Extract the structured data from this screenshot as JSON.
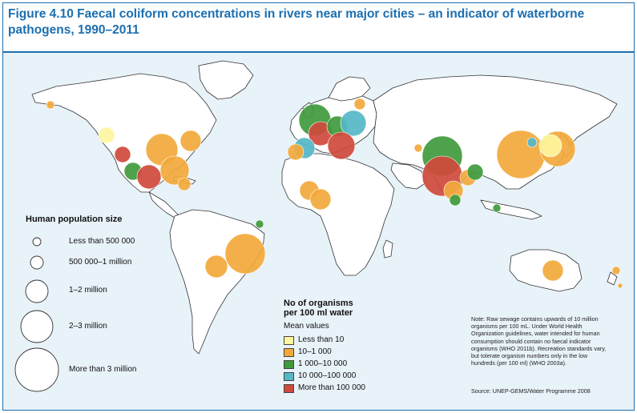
{
  "title": "Figure 4.10 Faecal coliform concentrations in rivers near major cities – an indicator of waterborne pathogens, 1990–2011",
  "population_legend": {
    "title": "Human population size",
    "items": [
      {
        "label": "Less than 500 000"
      },
      {
        "label": "500 000–1 million"
      },
      {
        "label": "1–2 million"
      },
      {
        "label": "2–3 million"
      },
      {
        "label": "More than 3 million"
      }
    ]
  },
  "concentration_legend": {
    "title_line1": "No of organisms",
    "title_line2": "per 100 ml water",
    "subtitle": "Mean values",
    "items": [
      {
        "label": "Less than 10",
        "color": "#fff59d"
      },
      {
        "label": "10–1 000",
        "color": "#f2a93b"
      },
      {
        "label": "1 000–10 000",
        "color": "#3f9a3c"
      },
      {
        "label": "10 000–100 000",
        "color": "#55b7c7"
      },
      {
        "label": "More than 100 000",
        "color": "#cf4a3c"
      }
    ]
  },
  "note": "Note: Raw sewage contains upwards of 10 million organisms per 100 mL. Under World Health Organization guidelines, water intended for human consumption should contain no faecal indicator organisms (WHO 2011b). Recreation standards vary, but tolerate organism numbers only in the low hundreds (per 100 ml) (WHO 2003a).",
  "source": "Source: UNEP-GEMS/Water Programme 2008",
  "colors": {
    "ocean": "#e8f2f9",
    "land": "#ffffff",
    "border": "#333333",
    "title": "#1b6fb0"
  }
}
